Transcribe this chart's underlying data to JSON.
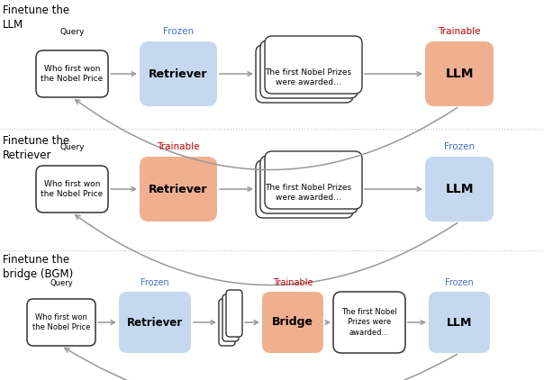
{
  "bg_color": "#ffffff",
  "frozen_color": "#c5d8f0",
  "trainable_color": "#f0b090",
  "query_box_color": "#ffffff",
  "doc_box_color": "#ffffff",
  "frozen_label_color": "#4472c4",
  "trainable_label_color": "#c00000",
  "title_color": "#000000",
  "arrow_color": "#999999",
  "row1_title": "Finetune the\nLLM",
  "row2_title": "Finetune the\nRetriever",
  "row3_title": "Finetune the\nbridge (BGM)",
  "query_text": "Who first won\nthe Nobel Price",
  "doc_text1": "The first Nobel Prizes\nwere awarded...",
  "doc_text2": "The first Nobel Prizes\nwere awarded...",
  "doc_text3": "The first Nobel\nPrizes were\nawarded...",
  "row1_retriever_label": "Frozen",
  "row1_llm_label": "Trainable",
  "row2_retriever_label": "Trainable",
  "row2_llm_label": "Frozen",
  "row3_retriever_label": "Frozen",
  "row3_bridge_label": "Trainable",
  "row3_llm_label": "Frozen"
}
